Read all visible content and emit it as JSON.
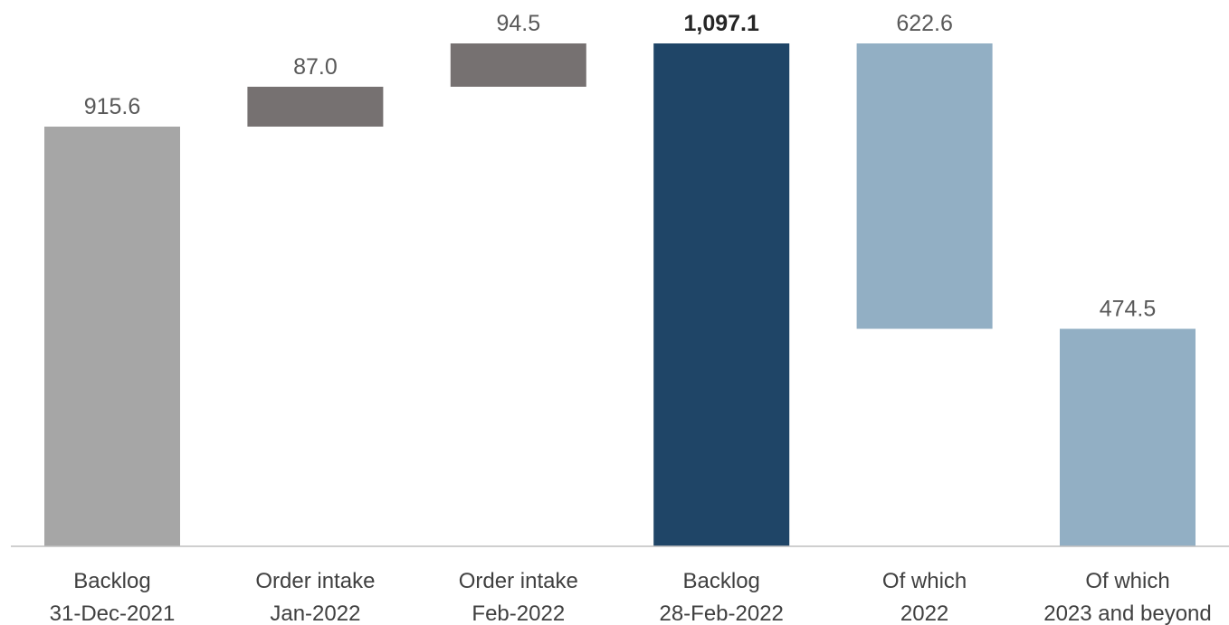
{
  "chart_data": {
    "type": "bar",
    "subtype": "waterfall",
    "categories": [
      [
        "Backlog",
        "31-Dec-2021"
      ],
      [
        "Order intake",
        "Jan-2022"
      ],
      [
        "Order intake",
        "Feb-2022"
      ],
      [
        "Backlog",
        "28-Feb-2022"
      ],
      [
        "Of which",
        "2022"
      ],
      [
        "Of which",
        "2023 and beyond"
      ]
    ],
    "bars": [
      {
        "base": 0,
        "top": 915.6,
        "value": 915.6,
        "label": "915.6",
        "color": "#a6a6a6",
        "kind": "total"
      },
      {
        "base": 915.6,
        "top": 1002.6,
        "value": 87.0,
        "label": "87.0",
        "color": "#767171",
        "kind": "increase"
      },
      {
        "base": 1002.6,
        "top": 1097.1,
        "value": 94.5,
        "label": "94.5",
        "color": "#767171",
        "kind": "increase"
      },
      {
        "base": 0,
        "top": 1097.1,
        "value": 1097.1,
        "label": "1,097.1",
        "color": "#1f4567",
        "kind": "total",
        "emphasis": true
      },
      {
        "base": 474.5,
        "top": 1097.1,
        "value": 622.6,
        "label": "622.6",
        "color": "#92afc4",
        "kind": "breakdown"
      },
      {
        "base": 0,
        "top": 474.5,
        "value": 474.5,
        "label": "474.5",
        "color": "#92afc4",
        "kind": "breakdown"
      }
    ],
    "ylim": [
      0,
      1097.1
    ],
    "grid": false,
    "legend": "none",
    "axis_color": "#bfbfbf"
  }
}
